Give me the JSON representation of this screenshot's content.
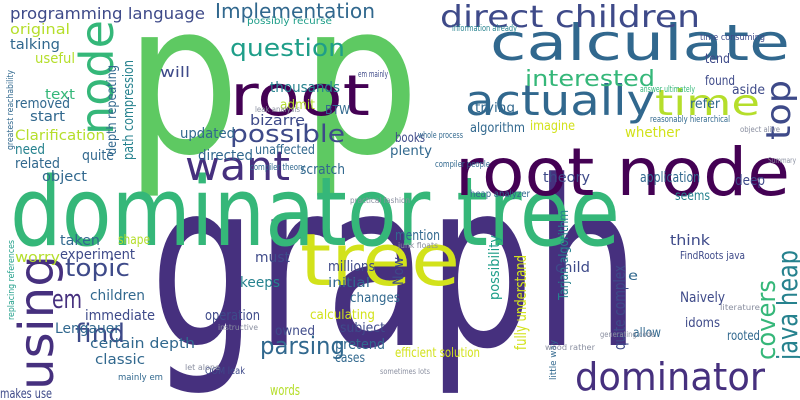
{
  "words": [
    "graph",
    "p",
    "p",
    "dominator tree",
    "root node",
    "tree",
    "calculate",
    "root",
    "actually",
    "time",
    "top",
    "node",
    "direct children",
    "Implementation",
    "question",
    "interested",
    "want",
    "possible",
    "using",
    "dominator",
    "java heap",
    "covers",
    "topic",
    "em",
    "find",
    "parsing",
    "programming language",
    "original",
    "talking",
    "useful",
    "text",
    "removed",
    "start",
    "Clarification",
    "need",
    "related",
    "object",
    "worry",
    "taken",
    "experiment",
    "shape",
    "children",
    "immediate",
    "Lengauer",
    "certain depth",
    "classic",
    "makes use",
    "will",
    "thousands",
    "admit",
    "bizarre",
    "BTW",
    "updated",
    "directed",
    "unaffected",
    "scratch",
    "quite",
    "must",
    "millions",
    "keeps",
    "initial",
    "mention",
    "plenty",
    "books",
    "theory",
    "algorithm",
    "imagine",
    "whether",
    "application",
    "deep",
    "seems",
    "think",
    "Tarjan algorithm",
    "possibility",
    "fully understand",
    "child",
    "Naively",
    "quite complex",
    "e",
    "allow",
    "idoms",
    "rooted",
    "operation",
    "calculating",
    "changes",
    "pretend",
    "subject",
    "cases",
    "owned",
    "words",
    "efficient solution",
    "refer",
    "found",
    "tend",
    "aside",
    "trying",
    "path compression",
    "depth repeating",
    "greatest reachability",
    "replacing references",
    "Now",
    "FindRoots java",
    "OOM leak",
    "heap analyzer",
    "compiler people",
    "possibly recurse",
    "em mainly",
    "little way",
    "let alone",
    "whole process",
    "information already",
    "time consuming",
    "Summary",
    "object alive",
    "answer ultimately",
    "reasonably hierarchical",
    "compiler theory",
    "leak analysis",
    "practical fashion",
    "junk floats",
    "mainly em",
    "instructive",
    "wood rather",
    "literature",
    "generating code",
    "sometimes lots"
  ]
}
